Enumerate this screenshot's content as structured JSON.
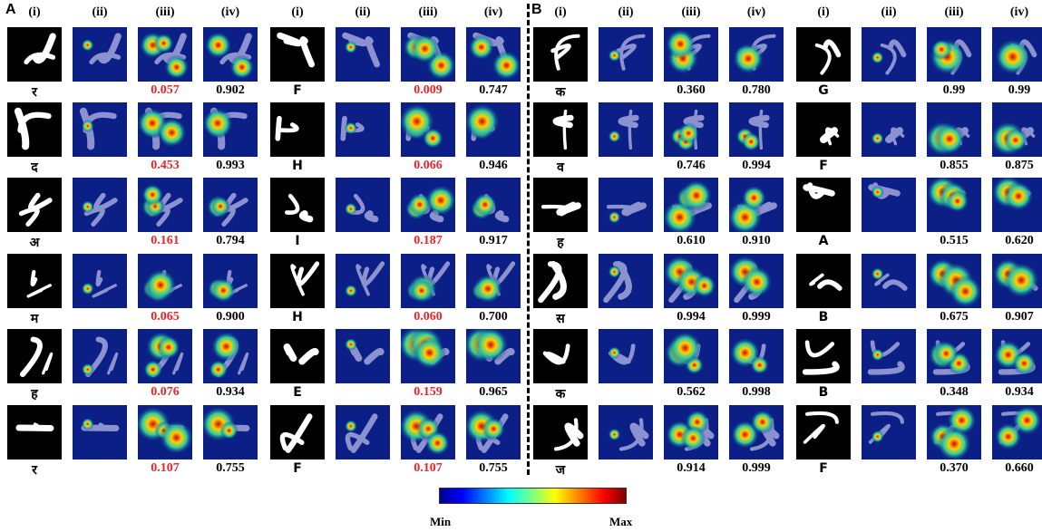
{
  "panels": [
    {
      "letter": "A",
      "groups": [
        {
          "headers": [
            "(i)",
            "(ii)",
            "(iii)",
            "(iv)"
          ],
          "rows": [
            {
              "char": "र",
              "v3": "0.057",
              "v4": "0.902"
            },
            {
              "char": "द",
              "v3": "0.453",
              "v4": "0.993"
            },
            {
              "char": "अ",
              "v3": "0.161",
              "v4": "0.794"
            },
            {
              "char": "म",
              "v3": "0.065",
              "v4": "0.900"
            },
            {
              "char": "ह",
              "v3": "0.076",
              "v4": "0.934"
            },
            {
              "char": "र",
              "v3": "0.107",
              "v4": "0.755"
            }
          ]
        },
        {
          "headers": [
            "(i)",
            "(ii)",
            "(iii)",
            "(iv)"
          ],
          "rows": [
            {
              "char": "F",
              "v3": "0.009",
              "v4": "0.747"
            },
            {
              "char": "H",
              "v3": "0.066",
              "v4": "0.946"
            },
            {
              "char": "I",
              "v3": "0.187",
              "v4": "0.917"
            },
            {
              "char": "H",
              "v3": "0.060",
              "v4": "0.700"
            },
            {
              "char": "E",
              "v3": "0.159",
              "v4": "0.965"
            },
            {
              "char": "F",
              "v3": "0.107",
              "v4": "0.755"
            }
          ]
        }
      ]
    },
    {
      "letter": "B",
      "groups": [
        {
          "headers": [
            "(i)",
            "(ii)",
            "(iii)",
            "(iv)"
          ],
          "rows": [
            {
              "char": "क",
              "v3": "0.360",
              "v4": "0.780"
            },
            {
              "char": "व",
              "v3": "0.746",
              "v4": "0.994"
            },
            {
              "char": "ह",
              "v3": "0.610",
              "v4": "0.910"
            },
            {
              "char": "स",
              "v3": "0.994",
              "v4": "0.999"
            },
            {
              "char": "क",
              "v3": "0.562",
              "v4": "0.998"
            },
            {
              "char": "ज",
              "v3": "0.914",
              "v4": "0.999"
            }
          ]
        },
        {
          "headers": [
            "(i)",
            "(ii)",
            "(iii)",
            "(iv)"
          ],
          "rows": [
            {
              "char": "G",
              "v3": "0.99",
              "v4": "0.99"
            },
            {
              "char": "F",
              "v3": "0.855",
              "v4": "0.875"
            },
            {
              "char": "A",
              "v3": "0.515",
              "v4": "0.620"
            },
            {
              "char": "B",
              "v3": "0.675",
              "v4": "0.907"
            },
            {
              "char": "B",
              "v3": "0.348",
              "v4": "0.934"
            },
            {
              "char": "F",
              "v3": "0.370",
              "v4": "0.660"
            }
          ]
        }
      ]
    }
  ],
  "colorbar": {
    "min_label": "Min",
    "max_label": "Max"
  },
  "colors": {
    "low_score": "#e5262a",
    "normal_score": "#000000",
    "heat_low": "#0b1f86",
    "heat_high": "#d00000"
  }
}
